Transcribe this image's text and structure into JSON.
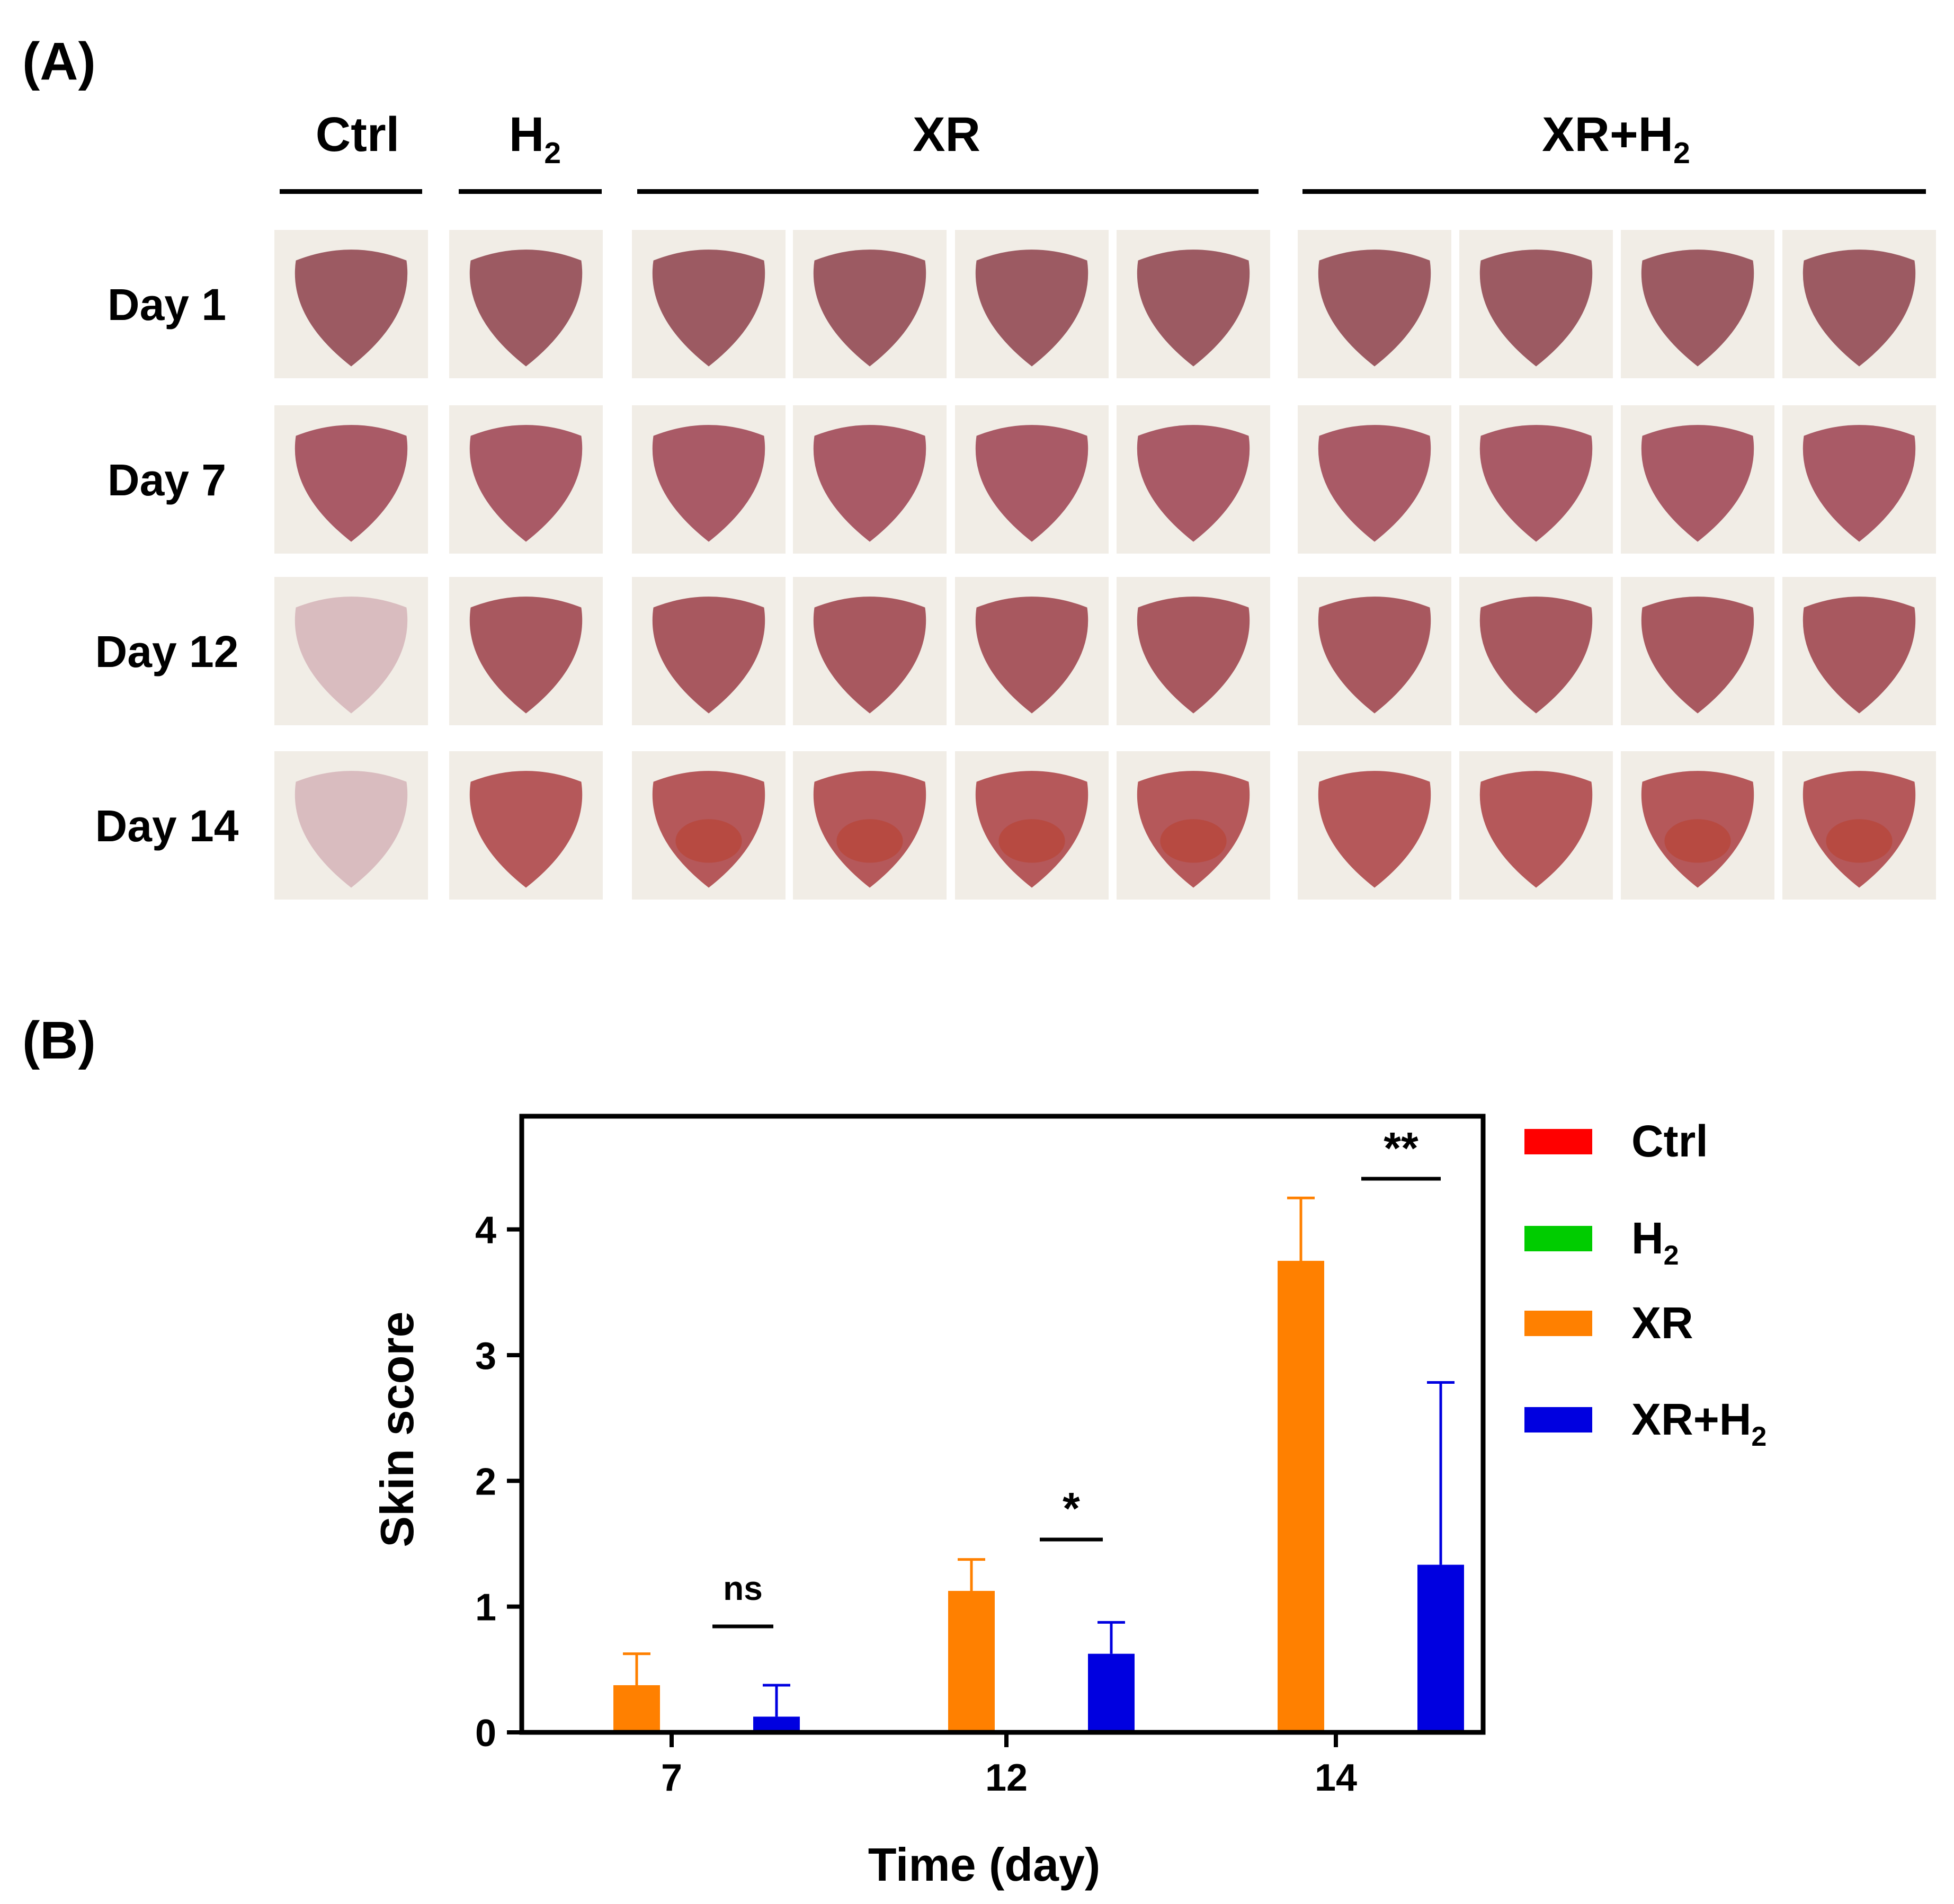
{
  "panel_a": {
    "label": "(A)",
    "group_headers": [
      {
        "text": "Ctrl",
        "sub": ""
      },
      {
        "text": "H",
        "sub": "2"
      },
      {
        "text": "XR",
        "sub": ""
      },
      {
        "text": "XR+H",
        "sub": "2"
      }
    ],
    "row_labels": [
      "Day 1",
      "Day 7",
      "Day 12",
      "Day 14"
    ],
    "groups": [
      {
        "name": "Ctrl",
        "photos": 1
      },
      {
        "name": "H2",
        "photos": 1
      },
      {
        "name": "XR",
        "photos": 4
      },
      {
        "name": "XR+H2",
        "photos": 4
      }
    ],
    "photo_colors": {
      "fur": "#f1ede6",
      "skin_day1": "#9c5a62",
      "skin_day7": "#a95a66",
      "skin_day12": "#a8585f",
      "skin_day14": "#b5585a",
      "ctrl_healed": "#d9bcbf",
      "lesion": "#b8402e"
    }
  },
  "panel_b": {
    "label": "(B)"
  },
  "chart_data": {
    "type": "bar",
    "title": "",
    "xlabel": "Time (day)",
    "ylabel": "Skin score",
    "categories": [
      "7",
      "12",
      "14"
    ],
    "ylim": [
      0,
      4.9
    ],
    "yticks": [
      "0",
      "1",
      "2",
      "3",
      "4"
    ],
    "series": [
      {
        "name": "Ctrl",
        "sub": "",
        "color": "#ff0000",
        "values": [
          0,
          0,
          0
        ],
        "errors": [
          0,
          0,
          0
        ]
      },
      {
        "name": "H",
        "sub": "2",
        "color": "#00cc00",
        "values": [
          0,
          0,
          0
        ],
        "errors": [
          0,
          0,
          0
        ]
      },
      {
        "name": "XR",
        "sub": "",
        "color": "#ff8000",
        "values": [
          0.375,
          1.125,
          3.75
        ],
        "errors": [
          0.25,
          0.25,
          0.5
        ]
      },
      {
        "name": "XR+H",
        "sub": "2",
        "color": "#0000e0",
        "values": [
          0.125,
          0.625,
          1.333
        ],
        "errors": [
          0.25,
          0.25,
          1.45
        ]
      }
    ],
    "significance": [
      {
        "category": "7",
        "text": "ns"
      },
      {
        "category": "12",
        "text": "*"
      },
      {
        "category": "14",
        "text": "**"
      }
    ],
    "legend_position": "right"
  }
}
